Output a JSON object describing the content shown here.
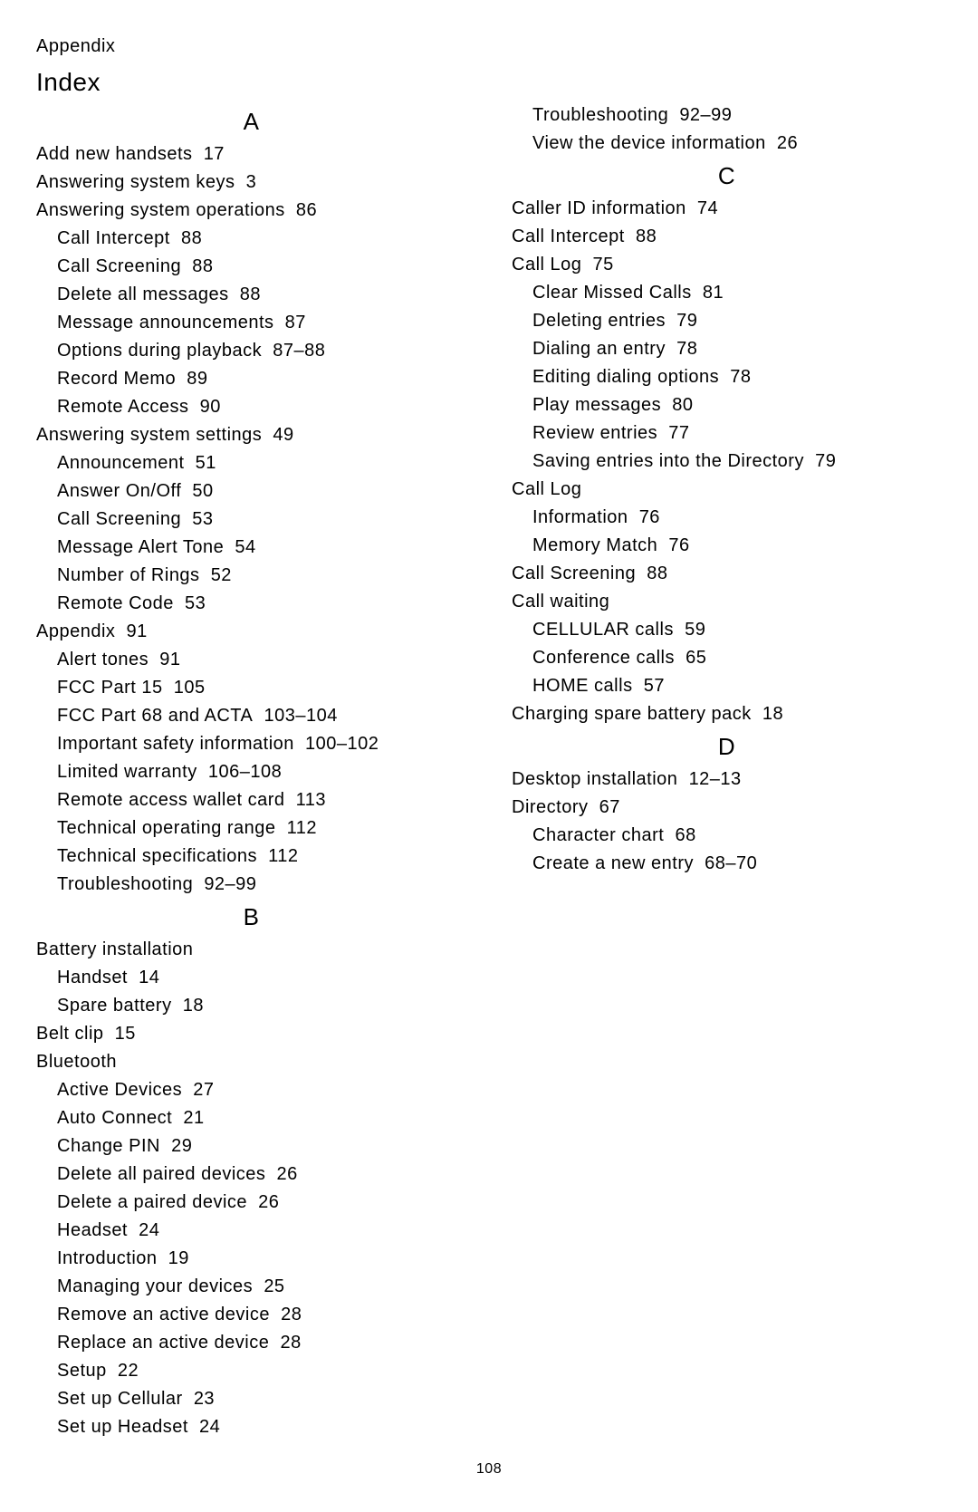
{
  "header": "Appendix",
  "title": "Index",
  "pageNumber": "108",
  "sections": [
    {
      "letter": "A",
      "entries": [
        {
          "t": "Add new handsets",
          "p": "17",
          "l": 0
        },
        {
          "t": "Answering system keys",
          "p": "3",
          "l": 0
        },
        {
          "t": "Answering system operations",
          "p": "86",
          "l": 0
        },
        {
          "t": "Call Intercept",
          "p": "88",
          "l": 1
        },
        {
          "t": "Call Screening",
          "p": "88",
          "l": 1
        },
        {
          "t": "Delete all messages",
          "p": "88",
          "l": 1
        },
        {
          "t": "Message announcements",
          "p": "87",
          "l": 1
        },
        {
          "t": "Options during playback",
          "p": "87–88",
          "l": 1
        },
        {
          "t": "Record Memo",
          "p": "89",
          "l": 1
        },
        {
          "t": "Remote Access",
          "p": "90",
          "l": 1
        },
        {
          "t": "Answering system settings",
          "p": "49",
          "l": 0
        },
        {
          "t": "Announcement",
          "p": "51",
          "l": 1
        },
        {
          "t": "Answer On/Off",
          "p": "50",
          "l": 1
        },
        {
          "t": "Call Screening",
          "p": "53",
          "l": 1
        },
        {
          "t": "Message Alert Tone",
          "p": "54",
          "l": 1
        },
        {
          "t": "Number of Rings",
          "p": "52",
          "l": 1
        },
        {
          "t": "Remote Code",
          "p": "53",
          "l": 1
        },
        {
          "t": "Appendix",
          "p": "91",
          "l": 0
        },
        {
          "t": "Alert tones",
          "p": "91",
          "l": 1
        },
        {
          "t": "FCC Part 15",
          "p": "105",
          "l": 1
        },
        {
          "t": "FCC Part 68 and ACTA",
          "p": "103–104",
          "l": 1
        },
        {
          "t": "Important safety information",
          "p": "100–102",
          "l": 1
        },
        {
          "t": "Limited warranty",
          "p": "106–108",
          "l": 1
        },
        {
          "t": "Remote access wallet card",
          "p": "113",
          "l": 1
        },
        {
          "t": "Technical operating range",
          "p": "112",
          "l": 1
        },
        {
          "t": "Technical specifications",
          "p": "112",
          "l": 1
        },
        {
          "t": "Troubleshooting",
          "p": "92–99",
          "l": 1
        }
      ]
    },
    {
      "letter": "B",
      "entries": [
        {
          "t": "Battery installation",
          "p": "",
          "l": 0
        },
        {
          "t": "Handset",
          "p": "14",
          "l": 1
        },
        {
          "t": "Spare battery",
          "p": "18",
          "l": 1
        },
        {
          "t": "Belt clip",
          "p": "15",
          "l": 0
        },
        {
          "t": "Bluetooth",
          "p": "",
          "l": 0
        },
        {
          "t": "Active Devices",
          "p": "27",
          "l": 1
        },
        {
          "t": "Auto Connect",
          "p": "21",
          "l": 1
        },
        {
          "t": "Change PIN",
          "p": "29",
          "l": 1
        },
        {
          "t": "Delete all paired devices",
          "p": "26",
          "l": 1
        },
        {
          "t": "Delete a paired device",
          "p": "26",
          "l": 1
        },
        {
          "t": "Headset",
          "p": "24",
          "l": 1
        },
        {
          "t": "Introduction",
          "p": "19",
          "l": 1
        },
        {
          "t": "Managing your devices",
          "p": "25",
          "l": 1
        },
        {
          "t": "Remove an active device",
          "p": "28",
          "l": 1
        },
        {
          "t": "Replace an active device",
          "p": "28",
          "l": 1
        },
        {
          "t": "Setup",
          "p": "22",
          "l": 1
        },
        {
          "t": "Set up Cellular",
          "p": "23",
          "l": 1
        },
        {
          "t": "Set up Headset",
          "p": "24",
          "l": 1
        },
        {
          "t": "Troubleshooting",
          "p": "92–99",
          "l": 1
        },
        {
          "t": "View the device information",
          "p": "26",
          "l": 1
        }
      ]
    },
    {
      "letter": "C",
      "entries": [
        {
          "t": "Caller ID information",
          "p": "74",
          "l": 0
        },
        {
          "t": "Call Intercept",
          "p": "88",
          "l": 0
        },
        {
          "t": "Call Log",
          "p": "75",
          "l": 0
        },
        {
          "t": "Clear Missed Calls",
          "p": "81",
          "l": 1
        },
        {
          "t": "Deleting entries",
          "p": "79",
          "l": 1
        },
        {
          "t": "Dialing an entry",
          "p": "78",
          "l": 1
        },
        {
          "t": "Editing dialing options",
          "p": "78",
          "l": 1
        },
        {
          "t": "Play messages",
          "p": "80",
          "l": 1
        },
        {
          "t": "Review entries",
          "p": "77",
          "l": 1
        },
        {
          "t": "Saving entries into the Directory",
          "p": "79",
          "l": 1
        },
        {
          "t": "Call Log",
          "p": "",
          "l": 0
        },
        {
          "t": "Information",
          "p": "76",
          "l": 1
        },
        {
          "t": "Memory Match",
          "p": "76",
          "l": 1
        },
        {
          "t": "Call Screening",
          "p": "88",
          "l": 0
        },
        {
          "t": "Call waiting",
          "p": "",
          "l": 0
        },
        {
          "t": "CELLULAR calls",
          "p": "59",
          "l": 1
        },
        {
          "t": "Conference calls",
          "p": "65",
          "l": 1
        },
        {
          "t": "HOME calls",
          "p": "57",
          "l": 1
        },
        {
          "t": "Charging spare battery pack",
          "p": "18",
          "l": 0
        }
      ]
    },
    {
      "letter": "D",
      "entries": [
        {
          "t": "Desktop installation",
          "p": "12–13",
          "l": 0
        },
        {
          "t": "Directory",
          "p": "67",
          "l": 0
        },
        {
          "t": "Character chart",
          "p": "68",
          "l": 1
        },
        {
          "t": "Create a new entry",
          "p": "68–70",
          "l": 1
        }
      ]
    }
  ]
}
